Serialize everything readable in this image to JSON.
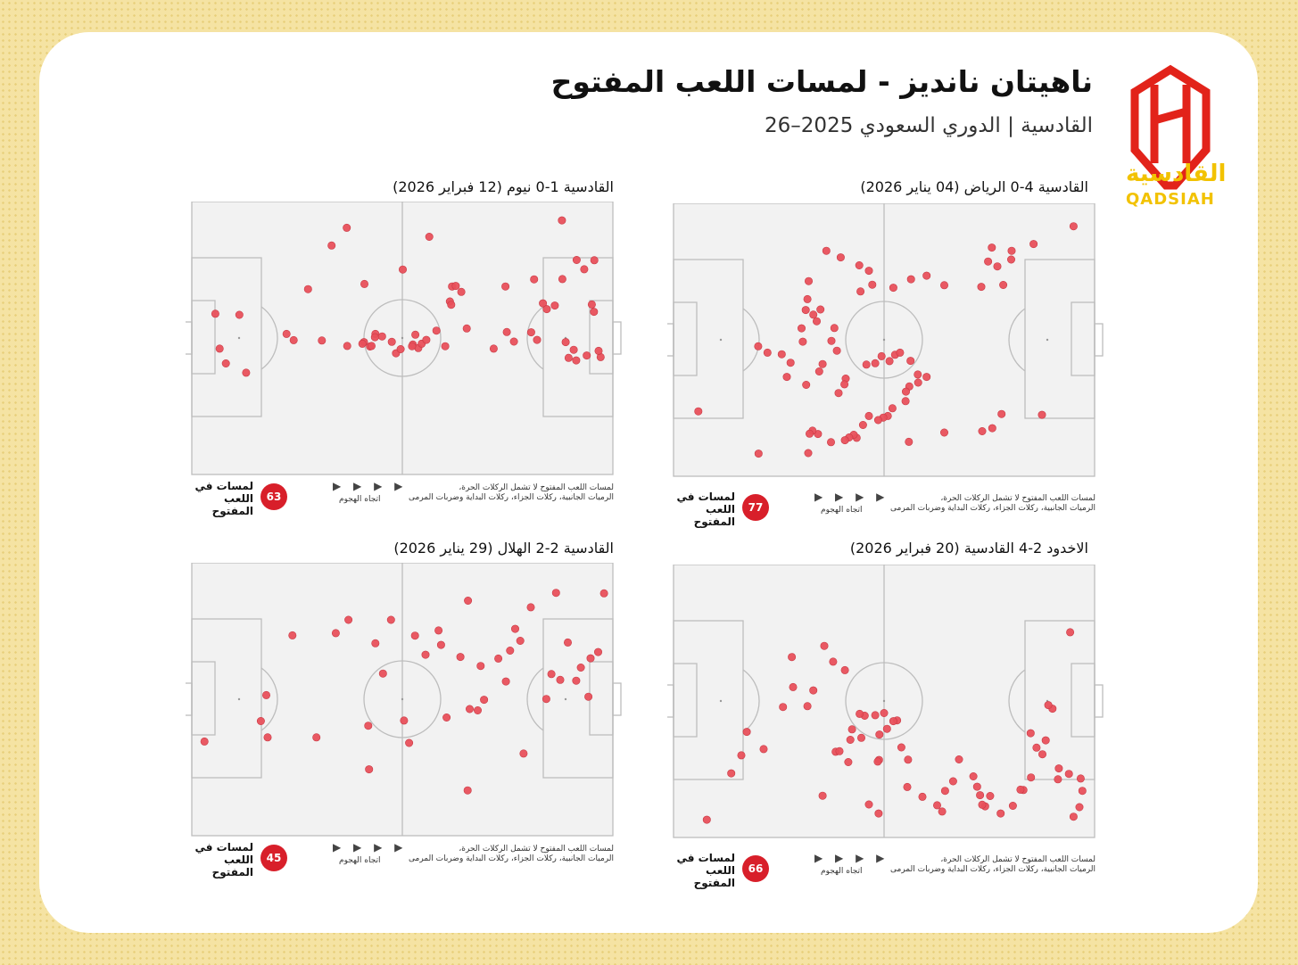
{
  "header": {
    "title": "ناهيتان نانديز - لمسات اللعب المفتوح",
    "subtitle": "القادسية | الدوري السعودي 2025–26"
  },
  "logo": {
    "text_ar": "القادسية",
    "text_en": "QADSIAH",
    "color_red": "#e2231a",
    "color_yellow": "#f2c200"
  },
  "colors": {
    "dot": "#e8505b",
    "pitch": "#f2f2f2",
    "badge": "#d81f2a",
    "background": "#f5e3a3"
  },
  "footer": {
    "label": "لمسات في اللعب المفتوح",
    "arrows": "▶ ▶ ▶ ▶",
    "direction": "اتجاه الهجوم",
    "note_line1": "لمسات اللعب المفتوح لا تشمل الركلات الحرة،",
    "note_line2": "الرميات الجانبية، ركلات الجزاء، ركلات البداية وضربات المرمى"
  },
  "chart_data": [
    {
      "type": "scatter",
      "title": "القادسية 1-0 نيوم (12 فبراير 2026)",
      "touch_count": "63",
      "xlim": [
        0,
        100
      ],
      "ylim": [
        0,
        100
      ],
      "points": [
        [
          87.9,
          93.1
        ],
        [
          56.4,
          87.1
        ],
        [
          91.4,
          78.6
        ],
        [
          27.6,
          67.9
        ],
        [
          61.8,
          68.9
        ],
        [
          62.7,
          69.1
        ],
        [
          61.3,
          63.4
        ],
        [
          61.6,
          62.2
        ],
        [
          5.6,
          58.9
        ],
        [
          11.3,
          58.5
        ],
        [
          6.6,
          46.1
        ],
        [
          8.1,
          40.7
        ],
        [
          12.9,
          37.3
        ],
        [
          24.2,
          49.2
        ],
        [
          22.5,
          51.5
        ],
        [
          43.6,
          51.5
        ],
        [
          36.8,
          90.4
        ],
        [
          30.9,
          49.1
        ],
        [
          40.9,
          48.5
        ],
        [
          33.2,
          83.9
        ],
        [
          41.0,
          69.8
        ],
        [
          50.1,
          75.1
        ],
        [
          48.5,
          44.4
        ],
        [
          58.1,
          52.7
        ],
        [
          52.5,
          47.6
        ],
        [
          36.9,
          47.1
        ],
        [
          40.5,
          47.9
        ],
        [
          42.3,
          46.9
        ],
        [
          42.7,
          47.1
        ],
        [
          43.5,
          50.3
        ],
        [
          45.2,
          50.6
        ],
        [
          47.5,
          48.6
        ],
        [
          49.6,
          45.9
        ],
        [
          53.8,
          46.3
        ],
        [
          53.1,
          51.2
        ],
        [
          52.3,
          47.0
        ],
        [
          54.6,
          47.9
        ],
        [
          55.7,
          49.3
        ],
        [
          60.2,
          47.0
        ],
        [
          71.7,
          46.1
        ],
        [
          82.0,
          49.3
        ],
        [
          88.8,
          48.5
        ],
        [
          90.7,
          45.7
        ],
        [
          74.8,
          52.2
        ],
        [
          64.0,
          66.9
        ],
        [
          65.3,
          53.5
        ],
        [
          74.5,
          68.9
        ],
        [
          83.4,
          62.7
        ],
        [
          81.3,
          71.5
        ],
        [
          84.3,
          60.6
        ],
        [
          86.2,
          61.9
        ],
        [
          88.0,
          71.6
        ],
        [
          93.2,
          75.2
        ],
        [
          95.6,
          78.5
        ],
        [
          95.0,
          62.3
        ],
        [
          95.5,
          59.6
        ],
        [
          97.1,
          43.0
        ],
        [
          96.6,
          45.3
        ],
        [
          76.5,
          48.7
        ],
        [
          80.6,
          52.1
        ],
        [
          89.5,
          42.7
        ],
        [
          91.3,
          41.8
        ],
        [
          93.8,
          43.6
        ]
      ]
    },
    {
      "type": "scatter",
      "title": "القادسية 4-0 الرياض (04 يناير 2026)",
      "touch_count": "77",
      "xlim": [
        0,
        100
      ],
      "ylim": [
        0,
        100
      ],
      "points": [
        [
          95.0,
          91.6
        ],
        [
          85.5,
          85.1
        ],
        [
          80.3,
          82.6
        ],
        [
          75.6,
          83.8
        ],
        [
          76.9,
          76.9
        ],
        [
          74.7,
          78.7
        ],
        [
          80.2,
          79.4
        ],
        [
          78.3,
          70.1
        ],
        [
          73.1,
          69.4
        ],
        [
          64.3,
          70.0
        ],
        [
          60.1,
          73.5
        ],
        [
          56.4,
          72.2
        ],
        [
          52.2,
          69.1
        ],
        [
          44.4,
          67.7
        ],
        [
          47.2,
          70.2
        ],
        [
          46.4,
          75.3
        ],
        [
          44.1,
          77.3
        ],
        [
          39.7,
          80.2
        ],
        [
          36.3,
          82.6
        ],
        [
          32.1,
          71.5
        ],
        [
          31.8,
          64.9
        ],
        [
          34.9,
          61.1
        ],
        [
          33.2,
          59.2
        ],
        [
          34.0,
          56.8
        ],
        [
          31.4,
          60.9
        ],
        [
          30.4,
          54.2
        ],
        [
          30.7,
          49.3
        ],
        [
          25.7,
          44.7
        ],
        [
          27.8,
          41.6
        ],
        [
          22.3,
          45.3
        ],
        [
          20.1,
          47.6
        ],
        [
          26.9,
          36.4
        ],
        [
          31.5,
          33.5
        ],
        [
          34.6,
          38.4
        ],
        [
          35.4,
          41.1
        ],
        [
          38.2,
          54.3
        ],
        [
          37.5,
          49.6
        ],
        [
          38.8,
          46.0
        ],
        [
          40.9,
          35.8
        ],
        [
          40.6,
          33.7
        ],
        [
          39.2,
          30.5
        ],
        [
          45.8,
          40.9
        ],
        [
          47.9,
          41.4
        ],
        [
          49.4,
          44.0
        ],
        [
          51.3,
          42.2
        ],
        [
          52.6,
          44.5
        ],
        [
          53.8,
          45.3
        ],
        [
          56.3,
          42.3
        ],
        [
          58.0,
          37.3
        ],
        [
          60.1,
          36.4
        ],
        [
          58.1,
          34.3
        ],
        [
          56.0,
          32.9
        ],
        [
          55.2,
          31.0
        ],
        [
          55.1,
          27.5
        ],
        [
          52.0,
          24.9
        ],
        [
          50.9,
          22.1
        ],
        [
          49.8,
          21.5
        ],
        [
          48.6,
          20.6
        ],
        [
          46.4,
          22.1
        ],
        [
          45.0,
          18.8
        ],
        [
          43.5,
          14.1
        ],
        [
          42.8,
          15.2
        ],
        [
          41.7,
          14.2
        ],
        [
          40.7,
          13.2
        ],
        [
          37.4,
          12.5
        ],
        [
          34.3,
          15.5
        ],
        [
          33.0,
          16.7
        ],
        [
          32.3,
          15.6
        ],
        [
          32.0,
          8.5
        ],
        [
          20.2,
          8.3
        ],
        [
          5.9,
          23.8
        ],
        [
          55.9,
          12.6
        ],
        [
          64.3,
          16.0
        ],
        [
          73.3,
          16.5
        ],
        [
          75.7,
          17.6
        ],
        [
          77.9,
          22.8
        ],
        [
          87.5,
          22.5
        ]
      ]
    },
    {
      "type": "scatter",
      "title": "القادسية 2-2 الهلال (29 يناير 2026)",
      "touch_count": "45",
      "xlim": [
        0,
        100
      ],
      "ylim": [
        0,
        100
      ],
      "points": [
        [
          3.0,
          34.5
        ],
        [
          18.0,
          36.0
        ],
        [
          17.7,
          51.5
        ],
        [
          16.4,
          42.0
        ],
        [
          23.9,
          73.4
        ],
        [
          29.6,
          36.0
        ],
        [
          34.2,
          74.2
        ],
        [
          37.2,
          79.1
        ],
        [
          42.1,
          24.3
        ],
        [
          41.9,
          40.3
        ],
        [
          43.6,
          70.5
        ],
        [
          45.4,
          59.4
        ],
        [
          47.3,
          79.1
        ],
        [
          50.4,
          42.2
        ],
        [
          51.6,
          34.0
        ],
        [
          53.0,
          73.3
        ],
        [
          55.5,
          66.3
        ],
        [
          58.6,
          75.2
        ],
        [
          59.2,
          69.9
        ],
        [
          63.8,
          65.5
        ],
        [
          65.6,
          86.1
        ],
        [
          60.5,
          43.3
        ],
        [
          66.0,
          46.4
        ],
        [
          67.9,
          45.9
        ],
        [
          68.6,
          62.2
        ],
        [
          69.4,
          49.8
        ],
        [
          72.8,
          64.9
        ],
        [
          74.6,
          56.5
        ],
        [
          75.6,
          67.8
        ],
        [
          78.0,
          71.4
        ],
        [
          84.2,
          50.1
        ],
        [
          85.4,
          59.2
        ],
        [
          87.5,
          57.1
        ],
        [
          89.3,
          70.8
        ],
        [
          91.3,
          56.8
        ],
        [
          92.4,
          61.6
        ],
        [
          94.7,
          65.0
        ],
        [
          96.5,
          67.3
        ],
        [
          97.9,
          88.8
        ],
        [
          94.2,
          50.9
        ],
        [
          86.5,
          89.0
        ],
        [
          80.5,
          83.7
        ],
        [
          76.8,
          75.8
        ],
        [
          78.8,
          30.1
        ],
        [
          65.5,
          16.6
        ]
      ]
    },
    {
      "type": "scatter",
      "title": "الاخدود 2-4 القادسية (20 فبراير 2026)",
      "touch_count": "66",
      "xlim": [
        0,
        100
      ],
      "ylim": [
        0,
        100
      ],
      "points": [
        [
          94.2,
          75.2
        ],
        [
          90.0,
          47.2
        ],
        [
          89.0,
          48.5
        ],
        [
          93.9,
          23.3
        ],
        [
          95.0,
          7.6
        ],
        [
          96.4,
          11.1
        ],
        [
          97.1,
          17.1
        ],
        [
          96.7,
          21.6
        ],
        [
          91.3,
          21.3
        ],
        [
          91.5,
          25.3
        ],
        [
          84.8,
          38.2
        ],
        [
          88.4,
          35.6
        ],
        [
          87.6,
          30.5
        ],
        [
          86.2,
          32.9
        ],
        [
          84.9,
          22.0
        ],
        [
          83.1,
          17.4
        ],
        [
          82.4,
          17.5
        ],
        [
          80.6,
          11.6
        ],
        [
          77.7,
          8.8
        ],
        [
          75.2,
          15.2
        ],
        [
          74.0,
          11.4
        ],
        [
          73.3,
          12.0
        ],
        [
          72.8,
          15.5
        ],
        [
          72.1,
          18.6
        ],
        [
          71.2,
          22.4
        ],
        [
          67.8,
          28.6
        ],
        [
          66.4,
          20.6
        ],
        [
          64.5,
          17.1
        ],
        [
          63.8,
          9.5
        ],
        [
          62.6,
          11.8
        ],
        [
          59.1,
          14.9
        ],
        [
          55.7,
          28.5
        ],
        [
          54.1,
          33.0
        ],
        [
          53.1,
          42.9
        ],
        [
          52.2,
          42.6
        ],
        [
          50.7,
          39.8
        ],
        [
          50.0,
          45.6
        ],
        [
          48.9,
          37.7
        ],
        [
          48.8,
          28.4
        ],
        [
          48.5,
          27.8
        ],
        [
          47.9,
          44.8
        ],
        [
          45.4,
          44.6
        ],
        [
          44.2,
          45.3
        ],
        [
          38.5,
          31.4
        ],
        [
          42.4,
          39.6
        ],
        [
          42.0,
          35.8
        ],
        [
          41.5,
          27.6
        ],
        [
          35.4,
          15.3
        ],
        [
          28.4,
          55.1
        ],
        [
          26.0,
          47.8
        ],
        [
          28.1,
          66.1
        ],
        [
          35.8,
          70.2
        ],
        [
          37.9,
          64.4
        ],
        [
          40.7,
          61.3
        ],
        [
          33.2,
          53.9
        ],
        [
          31.8,
          48.1
        ],
        [
          17.4,
          38.7
        ],
        [
          21.4,
          32.4
        ],
        [
          16.1,
          30.1
        ],
        [
          13.7,
          23.5
        ],
        [
          7.9,
          6.5
        ],
        [
          39.4,
          31.6
        ],
        [
          44.6,
          36.5
        ],
        [
          55.5,
          18.5
        ],
        [
          46.4,
          12.1
        ],
        [
          48.7,
          8.8
        ]
      ]
    }
  ]
}
